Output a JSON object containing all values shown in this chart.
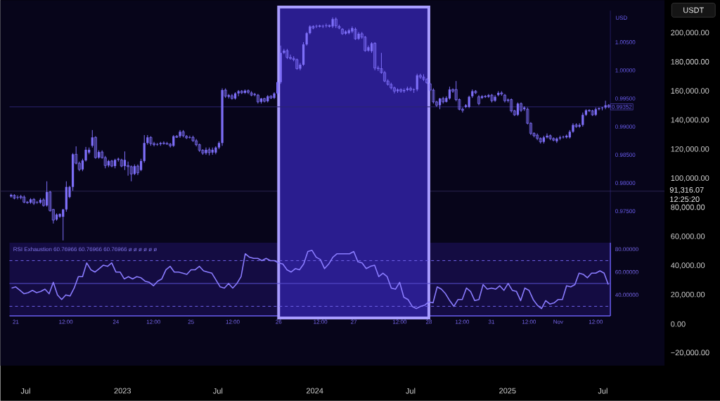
{
  "chart_data": [
    {
      "type": "line",
      "ylabel": "USDT",
      "xlim": [
        "2022-05-14",
        "2025-10-26"
      ],
      "xticks": [
        {
          "value": "2022-07-01",
          "label": "Jul"
        },
        {
          "value": "2023-01-01",
          "label": "2023"
        },
        {
          "value": "2023-07-01",
          "label": "Jul"
        },
        {
          "value": "2024-01-01",
          "label": "2024"
        },
        {
          "value": "2024-07-01",
          "label": "Jul"
        },
        {
          "value": "2025-01-01",
          "label": "2025"
        },
        {
          "value": "2025-07-01",
          "label": "Jul"
        }
      ],
      "ylim": [
        -28700,
        222700
      ],
      "yticks": [
        {
          "value": -20000,
          "label": "−20,000.00"
        },
        {
          "value": 0,
          "label": "0.00"
        },
        {
          "value": 20000,
          "label": "20,000.00"
        },
        {
          "value": 40000,
          "label": "40,000.00"
        },
        {
          "value": 60000,
          "label": "60,000.00"
        },
        {
          "value": 80000,
          "label": "80,000.00"
        },
        {
          "value": 100000,
          "label": "100,000.00"
        },
        {
          "value": 120000,
          "label": "120,000.00"
        },
        {
          "value": 140000,
          "label": "140,000.00"
        },
        {
          "value": 160000,
          "label": "160,000.00"
        },
        {
          "value": 180000,
          "label": "180,000.00"
        },
        {
          "value": 200000,
          "label": "200,000.00"
        }
      ],
      "ref_lines": [
        {
          "axis": "y",
          "value": 91316.07,
          "label": "91,316.07 12:25:20",
          "color": "#2a2450"
        }
      ]
    },
    {
      "type": "candlestick",
      "ylabel": "USD",
      "color": "#7d6ef8",
      "tick_labels": "y",
      "categories": [
        null,
        null,
        null,
        null,
        null,
        null,
        null,
        null,
        null,
        null,
        null,
        null,
        null,
        null,
        null,
        null,
        null,
        null,
        null,
        null,
        null,
        null,
        null,
        null,
        null,
        null,
        null,
        null,
        null,
        null,
        null,
        null,
        null,
        null,
        null,
        null,
        null,
        null,
        null,
        null,
        null,
        null,
        null,
        null,
        null,
        null,
        null,
        null,
        null,
        null,
        null,
        null,
        null,
        null,
        null,
        null,
        null,
        null,
        null,
        null,
        null,
        null,
        null,
        null,
        null,
        null,
        null,
        null,
        null,
        null,
        null,
        null,
        null,
        null,
        null,
        null,
        null,
        null,
        null,
        null,
        null,
        null,
        null,
        null,
        null,
        null,
        null,
        null,
        null,
        null,
        null,
        null,
        null,
        null,
        null,
        null,
        null,
        null,
        null,
        null,
        null,
        null,
        null,
        null,
        null,
        null,
        null,
        null,
        null,
        null,
        null,
        null,
        null,
        null,
        null,
        null,
        null,
        null,
        null,
        null,
        null,
        null,
        null,
        null,
        null,
        null,
        null,
        null,
        null,
        null,
        null,
        null,
        null,
        null,
        null,
        null,
        null,
        null,
        null,
        null,
        null,
        null,
        null,
        null,
        null,
        null,
        null,
        null,
        null,
        null,
        null,
        null,
        null,
        null,
        null,
        null,
        null,
        null,
        null,
        null,
        null,
        null,
        null,
        null,
        null,
        null,
        null,
        null,
        null,
        null,
        null,
        null,
        null,
        null,
        null,
        null,
        null,
        null,
        null,
        null,
        null,
        null,
        null,
        null,
        null
      ],
      "ohlc": [
        [
          0.9776,
          0.9781,
          0.9774,
          0.9779
        ],
        [
          0.9778,
          0.978,
          0.9771,
          0.9773
        ],
        [
          0.9774,
          0.9778,
          0.9771,
          0.9775
        ],
        [
          0.9776,
          0.9779,
          0.9771,
          0.9774
        ],
        [
          0.9775,
          0.9778,
          0.9764,
          0.9766
        ],
        [
          0.9766,
          0.9768,
          0.9763,
          0.9765
        ],
        [
          0.9765,
          0.9773,
          0.9763,
          0.9771
        ],
        [
          0.9771,
          0.9773,
          0.9761,
          0.9764
        ],
        [
          0.9765,
          0.9768,
          0.9763,
          0.9766
        ],
        [
          0.9765,
          0.9773,
          0.9763,
          0.977
        ],
        [
          0.977,
          0.9773,
          0.9758,
          0.976
        ],
        [
          0.976,
          0.9803,
          0.9758,
          0.9784
        ],
        [
          0.9784,
          0.9786,
          0.9749,
          0.9751
        ],
        [
          0.9753,
          0.9754,
          0.9728,
          0.9734
        ],
        [
          0.9735,
          0.9746,
          0.9733,
          0.9744
        ],
        [
          0.974,
          0.9746,
          0.9738,
          0.9745
        ],
        [
          0.974,
          0.9754,
          0.9698,
          0.9753
        ],
        [
          0.9753,
          0.9803,
          0.9749,
          0.9793
        ],
        [
          0.9775,
          0.9795,
          0.9773,
          0.9793
        ],
        [
          0.9793,
          0.9853,
          0.9786,
          0.9851
        ],
        [
          0.9851,
          0.9865,
          0.9833,
          0.9835
        ],
        [
          0.9835,
          0.9838,
          0.9821,
          0.9824
        ],
        [
          0.9824,
          0.9843,
          0.9821,
          0.984
        ],
        [
          0.984,
          0.9864,
          0.9838,
          0.9859
        ],
        [
          0.9854,
          0.9863,
          0.9851,
          0.9859
        ],
        [
          0.9866,
          0.9894,
          0.9863,
          0.9881
        ],
        [
          0.9881,
          0.9883,
          0.9843,
          0.9845
        ],
        [
          0.9845,
          0.9858,
          0.9843,
          0.9855
        ],
        [
          0.9855,
          0.9858,
          0.9843,
          0.9845
        ],
        [
          0.9845,
          0.9848,
          0.9826,
          0.9831
        ],
        [
          0.9831,
          0.9841,
          0.9828,
          0.9839
        ],
        [
          0.9839,
          0.9841,
          0.9828,
          0.983
        ],
        [
          0.983,
          0.9843,
          0.9826,
          0.9841
        ],
        [
          0.9841,
          0.9845,
          0.9838,
          0.9843
        ],
        [
          0.9841,
          0.9843,
          0.9828,
          0.983
        ],
        [
          0.983,
          0.9856,
          0.9823,
          0.9841
        ],
        [
          0.9831,
          0.9838,
          0.9813,
          0.9829
        ],
        [
          0.9829,
          0.9831,
          0.9803,
          0.9816
        ],
        [
          0.9816,
          0.9833,
          0.9814,
          0.983
        ],
        [
          0.983,
          0.9833,
          0.9814,
          0.9818
        ],
        [
          0.9823,
          0.9843,
          0.9821,
          0.9839
        ],
        [
          0.9839,
          0.9885,
          0.9836,
          0.9871
        ],
        [
          0.9871,
          0.9885,
          0.9868,
          0.9881
        ],
        [
          0.9881,
          0.9883,
          0.9866,
          0.987
        ],
        [
          0.987,
          0.9873,
          0.9865,
          0.9868
        ],
        [
          0.9868,
          0.9871,
          0.9866,
          0.9869
        ],
        [
          0.9869,
          0.9873,
          0.9866,
          0.9871
        ],
        [
          0.9871,
          0.9874,
          0.9868,
          0.987
        ],
        [
          0.987,
          0.9873,
          0.9868,
          0.9869
        ],
        [
          0.9869,
          0.9871,
          0.9863,
          0.9866
        ],
        [
          0.9866,
          0.9885,
          0.9864,
          0.9883
        ],
        [
          0.9883,
          0.9885,
          0.988,
          0.9881
        ],
        [
          0.9883,
          0.9894,
          0.988,
          0.9891
        ],
        [
          0.9891,
          0.9894,
          0.9881,
          0.9884
        ],
        [
          0.9883,
          0.9885,
          0.9878,
          0.988
        ],
        [
          0.988,
          0.9884,
          0.9879,
          0.9881
        ],
        [
          0.9881,
          0.9884,
          0.9873,
          0.9875
        ],
        [
          0.9875,
          0.9878,
          0.9865,
          0.9868
        ],
        [
          0.9868,
          0.987,
          0.9855,
          0.9858
        ],
        [
          0.9858,
          0.986,
          0.985,
          0.9853
        ],
        [
          0.9853,
          0.9863,
          0.985,
          0.9859
        ],
        [
          0.9859,
          0.9863,
          0.9849,
          0.9854
        ],
        [
          0.9854,
          0.9863,
          0.985,
          0.9859
        ],
        [
          0.9854,
          0.9865,
          0.9851,
          0.9863
        ],
        [
          0.9863,
          0.9874,
          0.986,
          0.9871
        ],
        [
          0.9871,
          0.9968,
          0.9866,
          0.9965
        ],
        [
          0.9965,
          0.9968,
          0.9951,
          0.9954
        ],
        [
          0.9953,
          0.9958,
          0.995,
          0.9956
        ],
        [
          0.9955,
          0.9958,
          0.9948,
          0.995
        ],
        [
          0.995,
          0.9961,
          0.9948,
          0.9959
        ],
        [
          0.9959,
          0.9965,
          0.9954,
          0.9963
        ],
        [
          0.9963,
          0.9965,
          0.9958,
          0.996
        ],
        [
          0.996,
          0.9966,
          0.9958,
          0.9964
        ],
        [
          0.9964,
          0.9966,
          0.9958,
          0.9961
        ],
        [
          0.996,
          0.9963,
          0.9954,
          0.9956
        ],
        [
          0.9956,
          0.996,
          0.9954,
          0.9958
        ],
        [
          0.9956,
          0.9958,
          0.9941,
          0.9944
        ],
        [
          0.9944,
          0.9951,
          0.9941,
          0.995
        ],
        [
          0.995,
          0.9951,
          0.9943,
          0.9945
        ],
        [
          0.9945,
          0.9956,
          0.9943,
          0.9954
        ],
        [
          0.9954,
          0.9956,
          0.9949,
          0.9951
        ],
        [
          0.9951,
          0.9961,
          0.9949,
          0.9959
        ],
        [
          0.9959,
          0.9981,
          0.9956,
          0.9979
        ],
        [
          0.9979,
          1.0044,
          0.9976,
          1.0031
        ],
        [
          1.0031,
          1.0038,
          1.0029,
          1.0035
        ],
        [
          1.0035,
          1.0038,
          1.002,
          1.0023
        ],
        [
          1.0023,
          1.0028,
          1.0019,
          1.0021
        ],
        [
          1.0021,
          1.0025,
          1.0016,
          1.0019
        ],
        [
          1.0019,
          1.0021,
          1.0001,
          1.0003
        ],
        [
          1.0003,
          1.0013,
          1.0,
          1.001
        ],
        [
          1.001,
          1.005,
          1.0008,
          1.0046
        ],
        [
          1.0046,
          1.0068,
          1.0044,
          1.0066
        ],
        [
          1.0066,
          1.008,
          1.0064,
          1.0078
        ],
        [
          1.0078,
          1.008,
          1.0073,
          1.0075
        ],
        [
          1.0078,
          1.0081,
          1.0075,
          1.0079
        ],
        [
          1.0079,
          1.0081,
          1.0076,
          1.0078
        ],
        [
          1.0078,
          1.0081,
          1.0075,
          1.0079
        ],
        [
          1.0079,
          1.0083,
          1.0076,
          1.008
        ],
        [
          1.008,
          1.0081,
          1.0076,
          1.0078
        ],
        [
          1.0078,
          1.0094,
          1.0075,
          1.0091
        ],
        [
          1.0091,
          1.0094,
          1.0075,
          1.0079
        ],
        [
          1.0078,
          1.0081,
          1.0073,
          1.0075
        ],
        [
          1.0073,
          1.0075,
          1.0063,
          1.0065
        ],
        [
          1.0065,
          1.0071,
          1.0063,
          1.0069
        ],
        [
          1.0066,
          1.0074,
          1.0064,
          1.0071
        ],
        [
          1.0069,
          1.0078,
          1.0066,
          1.0075
        ],
        [
          1.0073,
          1.0076,
          1.0054,
          1.0056
        ],
        [
          1.0056,
          1.0068,
          1.0054,
          1.0065
        ],
        [
          1.0065,
          1.0068,
          1.0056,
          1.0059
        ],
        [
          1.0059,
          1.0061,
          1.0033,
          1.0035
        ],
        [
          1.0035,
          1.0044,
          1.0033,
          1.0041
        ],
        [
          1.0034,
          1.005,
          1.0031,
          1.0048
        ],
        [
          1.0048,
          1.005,
          1.0,
          1.0004
        ],
        [
          1.0004,
          1.0008,
          0.9999,
          1.0003
        ],
        [
          1.0003,
          1.0031,
          0.9994,
          0.9996
        ],
        [
          0.9996,
          0.9999,
          0.9979,
          0.9981
        ],
        [
          0.9981,
          0.9984,
          0.9973,
          0.9975
        ],
        [
          0.9975,
          0.9978,
          0.9966,
          0.9969
        ],
        [
          0.9969,
          0.9971,
          0.9959,
          0.9963
        ],
        [
          0.9963,
          0.9968,
          0.996,
          0.9966
        ],
        [
          0.9966,
          0.9968,
          0.996,
          0.9963
        ],
        [
          0.9963,
          0.9968,
          0.996,
          0.9965
        ],
        [
          0.9965,
          0.9971,
          0.9963,
          0.9968
        ],
        [
          0.9968,
          0.9971,
          0.9963,
          0.9965
        ],
        [
          0.9965,
          0.9968,
          0.996,
          0.9966
        ],
        [
          0.9966,
          0.9994,
          0.9963,
          0.9991
        ],
        [
          0.9991,
          0.9994,
          0.9985,
          0.9988
        ],
        [
          0.9988,
          0.9993,
          0.9981,
          0.9984
        ],
        [
          0.9984,
          0.9986,
          0.9976,
          0.9978
        ],
        [
          0.9976,
          0.9978,
          0.9963,
          0.9965
        ],
        [
          0.9965,
          0.9968,
          0.9941,
          0.9944
        ],
        [
          0.9944,
          0.9946,
          0.9935,
          0.9938
        ],
        [
          0.9938,
          0.9951,
          0.9931,
          0.995
        ],
        [
          0.995,
          0.9953,
          0.9941,
          0.9944
        ],
        [
          0.9944,
          0.9954,
          0.9943,
          0.9951
        ],
        [
          0.995,
          0.9971,
          0.9948,
          0.9966
        ],
        [
          0.9966,
          0.9968,
          0.996,
          0.9963
        ],
        [
          0.9966,
          0.9981,
          0.9945,
          0.9948
        ],
        [
          0.9948,
          0.995,
          0.9929,
          0.9931
        ],
        [
          0.9931,
          0.9934,
          0.9925,
          0.9929
        ],
        [
          0.9935,
          0.994,
          0.9933,
          0.9938
        ],
        [
          0.9935,
          0.9955,
          0.9933,
          0.9953
        ],
        [
          0.9954,
          0.9966,
          0.9951,
          0.9963
        ],
        [
          0.9963,
          0.9965,
          0.9958,
          0.996
        ],
        [
          0.9953,
          0.9956,
          0.9938,
          0.9941
        ],
        [
          0.9951,
          0.9956,
          0.9949,
          0.9954
        ],
        [
          0.9954,
          0.9956,
          0.9951,
          0.9953
        ],
        [
          0.9953,
          0.9958,
          0.9951,
          0.9956
        ],
        [
          0.9956,
          0.9958,
          0.9943,
          0.9946
        ],
        [
          0.9946,
          0.9956,
          0.9944,
          0.9953
        ],
        [
          0.9956,
          0.9963,
          0.9954,
          0.996
        ],
        [
          0.996,
          0.9963,
          0.9955,
          0.9958
        ],
        [
          0.9956,
          0.9958,
          0.9943,
          0.9946
        ],
        [
          0.9946,
          0.995,
          0.9943,
          0.9948
        ],
        [
          0.9948,
          0.995,
          0.9925,
          0.9928
        ],
        [
          0.9928,
          0.993,
          0.9919,
          0.9921
        ],
        [
          0.9921,
          0.9943,
          0.9919,
          0.9941
        ],
        [
          0.9941,
          0.9943,
          0.9926,
          0.9929
        ],
        [
          0.9931,
          0.9936,
          0.9928,
          0.9934
        ],
        [
          0.9931,
          0.9934,
          0.9904,
          0.9906
        ],
        [
          0.9906,
          0.9908,
          0.9885,
          0.9888
        ],
        [
          0.9888,
          0.989,
          0.9881,
          0.9884
        ],
        [
          0.9885,
          0.9888,
          0.9876,
          0.9879
        ],
        [
          0.9879,
          0.9881,
          0.987,
          0.9873
        ],
        [
          0.9873,
          0.9884,
          0.987,
          0.9881
        ],
        [
          0.9881,
          0.9888,
          0.9879,
          0.9884
        ],
        [
          0.9884,
          0.9886,
          0.9876,
          0.9879
        ],
        [
          0.9879,
          0.9881,
          0.9874,
          0.9876
        ],
        [
          0.9874,
          0.9881,
          0.9871,
          0.9879
        ],
        [
          0.9879,
          0.9884,
          0.9876,
          0.9881
        ],
        [
          0.9881,
          0.9884,
          0.9879,
          0.9882
        ],
        [
          0.9881,
          0.9886,
          0.9879,
          0.9884
        ],
        [
          0.9881,
          0.9894,
          0.9879,
          0.9891
        ],
        [
          0.9891,
          0.9906,
          0.9889,
          0.9903
        ],
        [
          0.9903,
          0.9906,
          0.9898,
          0.99
        ],
        [
          0.99,
          0.9906,
          0.9898,
          0.9903
        ],
        [
          0.9903,
          0.9925,
          0.99,
          0.9921
        ],
        [
          0.9921,
          0.9931,
          0.9919,
          0.9929
        ],
        [
          0.9929,
          0.9931,
          0.9926,
          0.9928
        ],
        [
          0.9928,
          0.993,
          0.9919,
          0.9921
        ],
        [
          0.9921,
          0.9934,
          0.9919,
          0.9931
        ],
        [
          0.9931,
          0.9934,
          0.9929,
          0.9933
        ],
        [
          0.9933,
          0.9935,
          0.9929,
          0.9934
        ],
        [
          0.9934,
          0.9946,
          0.9931,
          0.9938
        ],
        [
          0.9938,
          0.994,
          0.9933,
          0.9935
        ]
      ],
      "ylim": [
        0.9694,
        1.0106
      ],
      "yticks": [
        {
          "value": 0.975,
          "label": "0.97500"
        },
        {
          "value": 0.98,
          "label": "0.98000"
        },
        {
          "value": 0.985,
          "label": "0.98500"
        },
        {
          "value": 0.99,
          "label": "0.99000"
        },
        {
          "value": 0.995,
          "label": "0.99500"
        },
        {
          "value": 1.0,
          "label": "1.00000"
        },
        {
          "value": 1.005,
          "label": "1.00500"
        }
      ],
      "ref_lines": [
        {
          "axis": "y",
          "value": 0.99352,
          "label": "0.99352",
          "color": "#2b2470"
        }
      ]
    },
    {
      "type": "line",
      "title": "RSI Exhaustion  60.76966  60.76966  60.76966  ø  ø  ø  ø  ø  ø",
      "series": [
        {
          "color": "#8a7cff",
          "values": [
            46,
            47,
            44,
            41,
            42,
            44,
            42,
            43,
            45,
            41,
            51,
            40,
            36,
            40,
            39,
            46,
            56,
            56,
            68,
            62,
            60,
            63,
            66,
            65,
            68,
            60,
            60,
            54,
            56,
            54,
            56,
            55,
            52,
            51,
            48,
            52,
            54,
            62,
            65,
            60,
            60,
            59,
            58,
            62,
            62,
            65,
            61,
            60,
            59,
            53,
            47,
            46,
            50,
            46,
            50,
            56,
            76,
            73,
            72,
            72,
            70,
            72,
            70,
            70,
            68,
            67,
            62,
            60,
            63,
            62,
            67,
            78,
            79,
            73,
            71,
            63,
            67,
            73,
            76,
            76,
            76,
            76,
            78,
            69,
            68,
            63,
            65,
            66,
            56,
            59,
            56,
            46,
            45,
            51,
            38,
            36,
            30,
            28,
            30,
            31,
            34,
            33,
            47,
            45,
            41,
            35,
            30,
            36,
            36,
            46,
            43,
            35,
            36,
            49,
            45,
            46,
            45,
            48,
            44,
            50,
            44,
            43,
            35,
            46,
            44,
            36,
            31,
            28,
            35,
            32,
            33,
            36,
            36,
            48,
            47,
            49,
            59,
            58,
            55,
            59,
            59,
            61,
            59,
            49
          ]
        }
      ],
      "categories": [
        null,
        "21",
        null,
        null,
        null,
        null,
        null,
        null,
        null,
        null,
        null,
        null,
        null,
        "12:00",
        null,
        null,
        null,
        null,
        null,
        null,
        null,
        null,
        null,
        null,
        null,
        "24",
        null,
        null,
        null,
        null,
        null,
        null,
        null,
        null,
        "12:00",
        null,
        null,
        null,
        null,
        null,
        null,
        null,
        null,
        "25",
        null,
        null,
        null,
        null,
        null,
        null,
        null,
        null,
        null,
        "12:00",
        null,
        null,
        null,
        null,
        null,
        null,
        null,
        null,
        null,
        null,
        "26",
        null,
        null,
        null,
        null,
        null,
        null,
        null,
        null,
        null,
        "12:00",
        null,
        null,
        null,
        null,
        null,
        null,
        null,
        "27",
        null,
        null,
        null,
        null,
        null,
        null,
        null,
        null,
        null,
        null,
        "12:00",
        null,
        null,
        null,
        null,
        null,
        null,
        "28",
        null,
        null,
        null,
        null,
        null,
        null,
        null,
        "12:00",
        null,
        null,
        null,
        null,
        null,
        null,
        "31",
        null,
        null,
        null,
        null,
        null,
        null,
        null,
        null,
        "12:00",
        null,
        null,
        null,
        null,
        null,
        null,
        "Nov",
        null,
        null,
        null,
        null,
        null,
        null,
        null,
        null,
        "12:00",
        null,
        null,
        null
      ],
      "ylim": [
        21.7,
        85.7
      ],
      "yticks": [
        {
          "value": 40,
          "label": "40.00000"
        },
        {
          "value": 60,
          "label": "60.00000"
        },
        {
          "value": 80,
          "label": "80.00000"
        }
      ],
      "ref_lines": [
        {
          "axis": "y",
          "value": 70,
          "color": "#6f62e8",
          "line_style": "dashed"
        },
        {
          "axis": "y",
          "value": 50,
          "color": "#5a4fd0"
        },
        {
          "axis": "y",
          "value": 30,
          "color": "#6f62e8",
          "line_style": "dashed"
        }
      ],
      "bands": [
        {
          "axis": "x",
          "from": "26",
          "to": "28",
          "color": "#2a1d8f"
        }
      ]
    }
  ]
}
